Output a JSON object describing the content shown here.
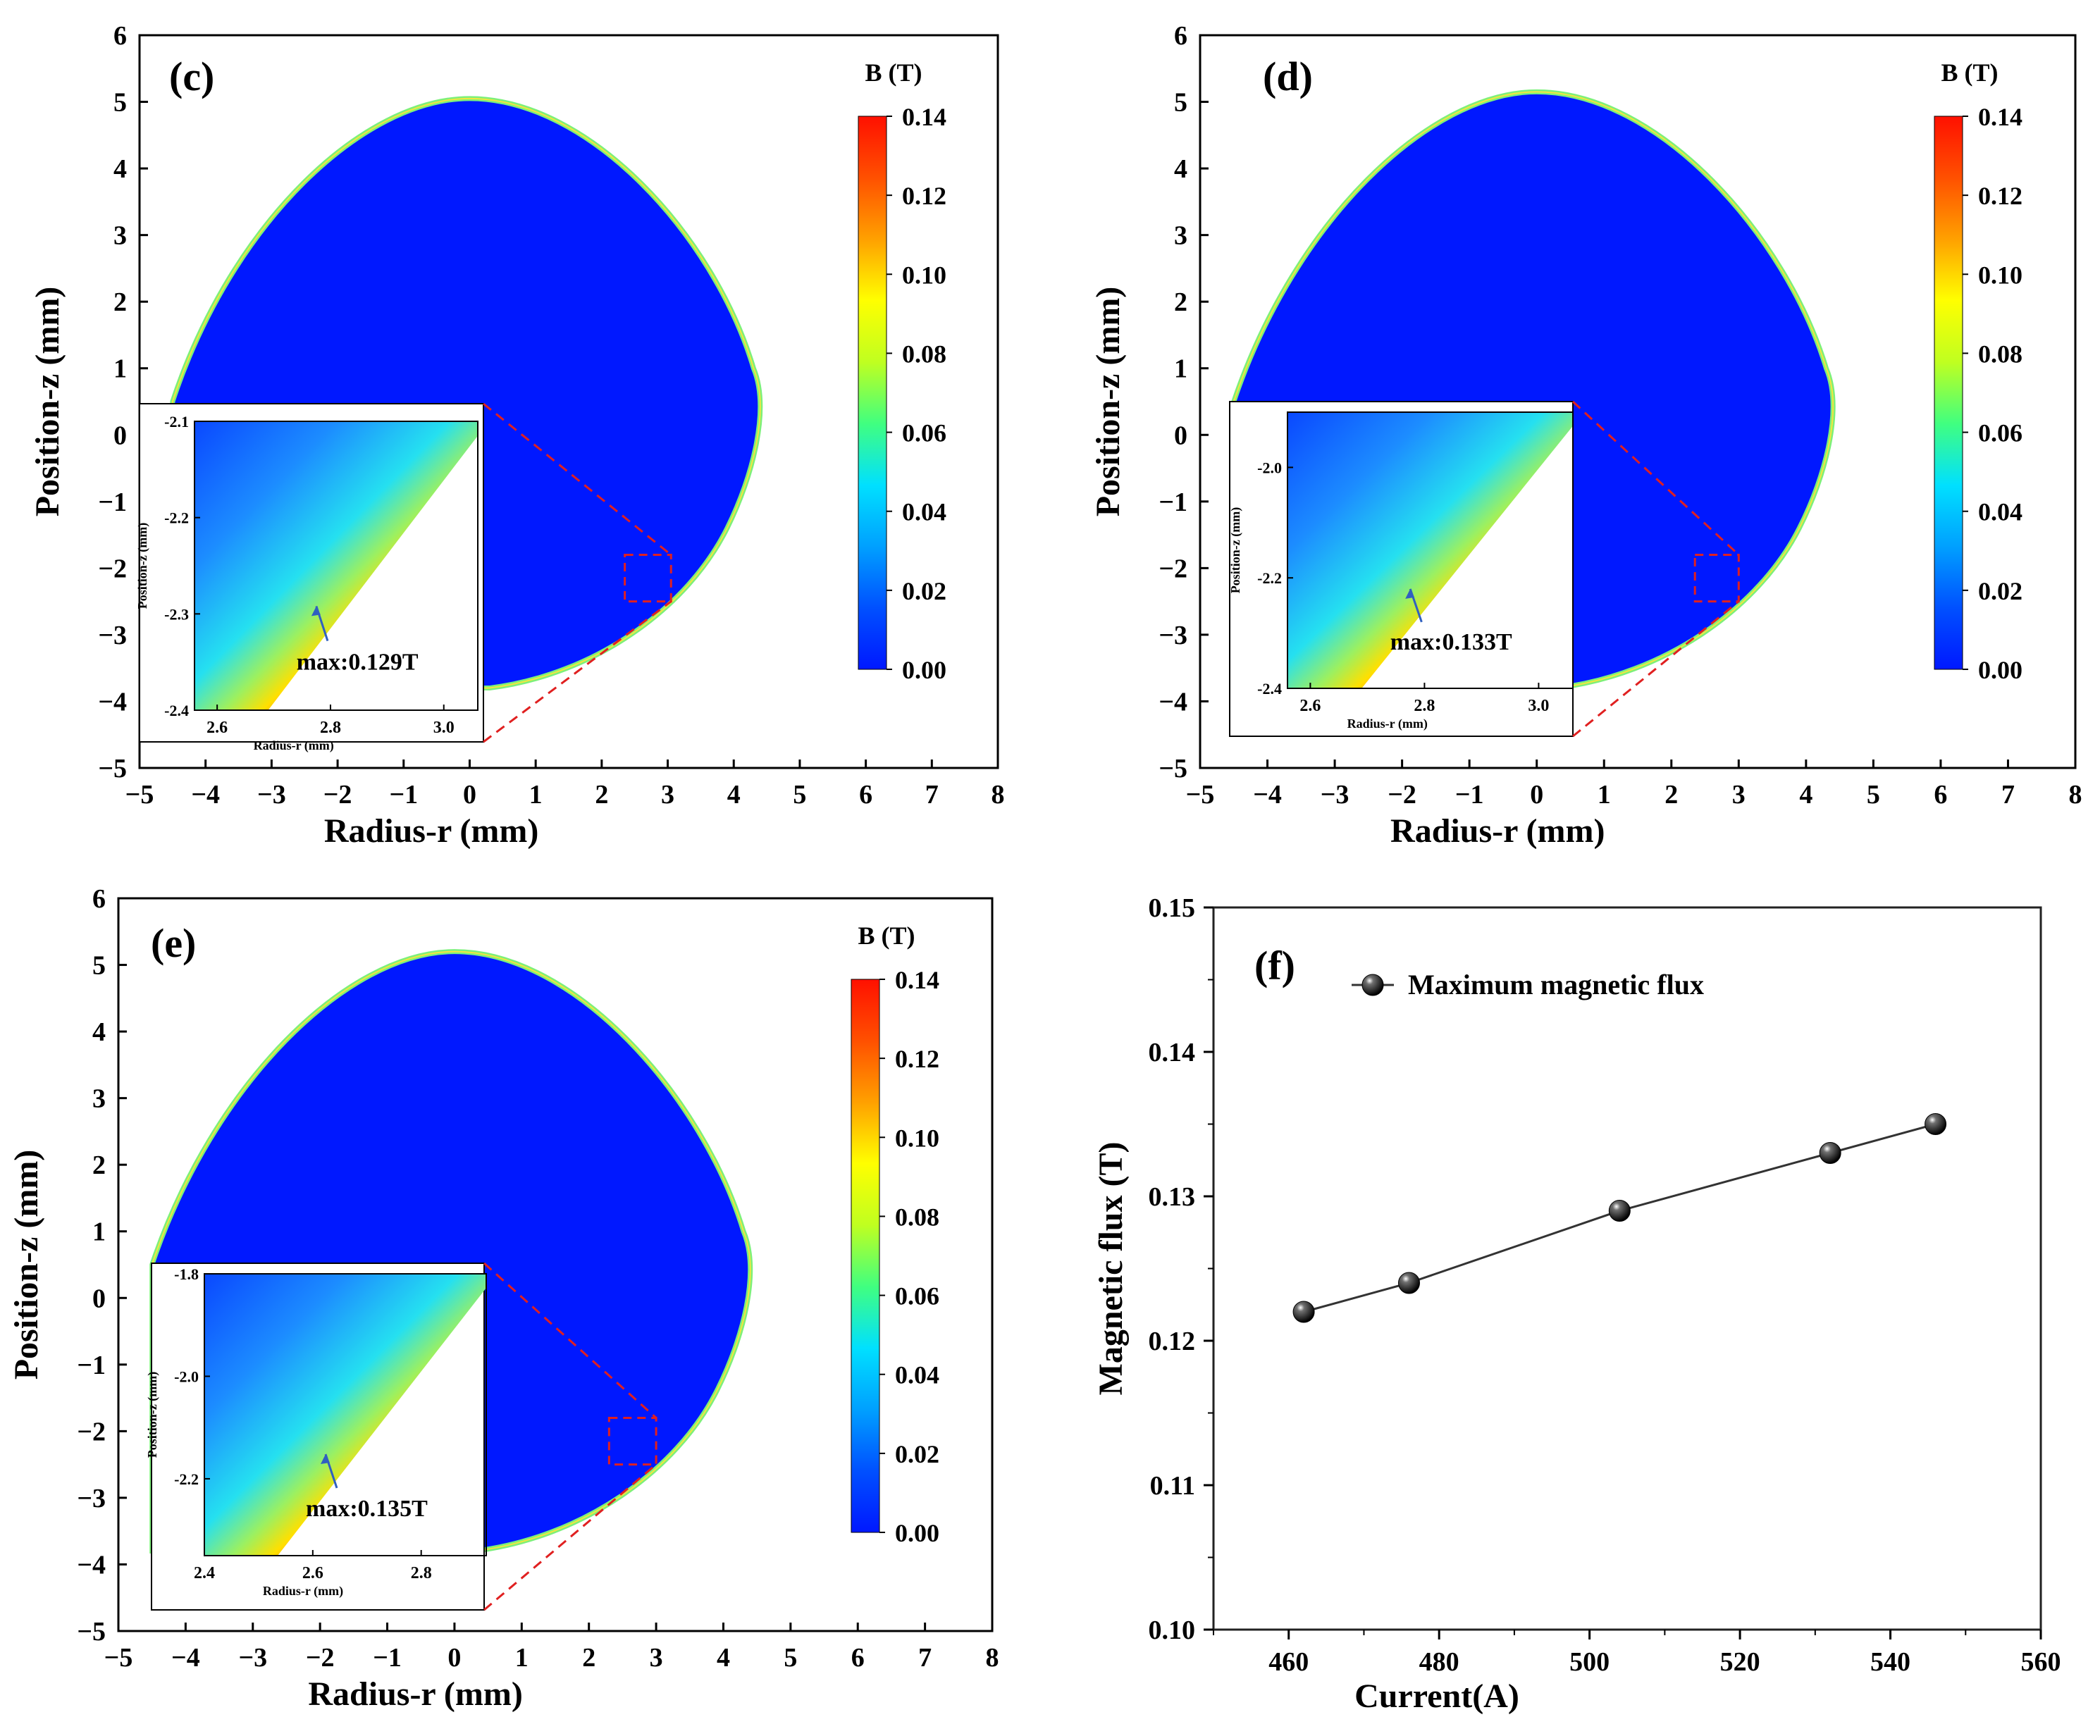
{
  "figure": {
    "colorscale": [
      "#0018ff",
      "#0050ff",
      "#00a0ff",
      "#00e0ff",
      "#40ff80",
      "#c0ff20",
      "#ffff00",
      "#ffa000",
      "#ff5000",
      "#ff1000"
    ]
  },
  "chart_data": [
    {
      "id": "c",
      "type": "heatmap",
      "panel_label": "(c)",
      "title": "",
      "xlabel": "Radius-r (mm)",
      "ylabel": "Position-z (mm)",
      "xlim": [
        -5,
        8
      ],
      "ylim": [
        -5,
        6
      ],
      "xticks": [
        "−5",
        "−4",
        "−3",
        "−2",
        "−1",
        "0",
        "1",
        "2",
        "3",
        "4",
        "5",
        "6",
        "7",
        "8"
      ],
      "yticks": [
        "−5",
        "−4",
        "−3",
        "−2",
        "−1",
        "0",
        "1",
        "2",
        "3",
        "4",
        "5",
        "6"
      ],
      "droplet_top_z": 5.05,
      "colorbar": {
        "label": "B (T)",
        "ticks": [
          "0.00",
          "0.02",
          "0.04",
          "0.06",
          "0.08",
          "0.10",
          "0.12",
          "0.14"
        ],
        "range": [
          0,
          0.14
        ]
      },
      "inset": {
        "xlim": [
          2.56,
          3.06
        ],
        "ylim": [
          -2.4,
          -2.1
        ],
        "xticks": [
          "2.6",
          "2.8",
          "3.0"
        ],
        "xtick_values": [
          2.6,
          2.8,
          3.0
        ],
        "yticks": [
          "-2.1",
          "-2.2",
          "-2.3",
          "-2.4"
        ],
        "ytick_values": [
          -2.1,
          -2.2,
          -2.3,
          -2.4
        ],
        "xlabel": "Radius-r (mm)",
        "ylabel": "Position-z (mm)",
        "annotation": "max:0.129T",
        "zoom_region": {
          "r": [
            2.35,
            3.05
          ],
          "z": [
            -2.5,
            -1.8
          ]
        }
      }
    },
    {
      "id": "d",
      "type": "heatmap",
      "panel_label": "(d)",
      "title": "",
      "xlabel": "Radius-r (mm)",
      "ylabel": "Position-z (mm)",
      "xlim": [
        -5,
        8
      ],
      "ylim": [
        -5,
        6
      ],
      "xticks": [
        "−5",
        "−4",
        "−3",
        "−2",
        "−1",
        "0",
        "1",
        "2",
        "3",
        "4",
        "5",
        "6",
        "7",
        "8"
      ],
      "yticks": [
        "−5",
        "−4",
        "−3",
        "−2",
        "−1",
        "0",
        "1",
        "2",
        "3",
        "4",
        "5",
        "6"
      ],
      "droplet_top_z": 5.15,
      "colorbar": {
        "label": "B (T)",
        "ticks": [
          "0.00",
          "0.02",
          "0.04",
          "0.06",
          "0.08",
          "0.10",
          "0.12",
          "0.14"
        ],
        "range": [
          0,
          0.14
        ]
      },
      "inset": {
        "xlim": [
          2.56,
          3.06
        ],
        "ylim": [
          -2.4,
          -1.9
        ],
        "xticks": [
          "2.6",
          "2.8",
          "3.0"
        ],
        "xtick_values": [
          2.6,
          2.8,
          3.0
        ],
        "yticks": [
          "-2.0",
          "-2.2",
          "-2.4"
        ],
        "ytick_values": [
          -2.0,
          -2.2,
          -2.4
        ],
        "xlabel": "Radius-r (mm)",
        "ylabel": "Position-z (mm)",
        "annotation": "max:0.133T",
        "zoom_region": {
          "r": [
            2.35,
            3.0
          ],
          "z": [
            -2.5,
            -1.8
          ]
        }
      }
    },
    {
      "id": "e",
      "type": "heatmap",
      "panel_label": "(e)",
      "title": "",
      "xlabel": "Radius-r (mm)",
      "ylabel": "Position-z (mm)",
      "xlim": [
        -5,
        8
      ],
      "ylim": [
        -5,
        6
      ],
      "xticks": [
        "−5",
        "−4",
        "−3",
        "−2",
        "−1",
        "0",
        "1",
        "2",
        "3",
        "4",
        "5",
        "6",
        "7",
        "8"
      ],
      "yticks": [
        "−5",
        "−4",
        "−3",
        "−2",
        "−1",
        "0",
        "1",
        "2",
        "3",
        "4",
        "5",
        "6"
      ],
      "droplet_top_z": 5.2,
      "colorbar": {
        "label": "B (T)",
        "ticks": [
          "0.00",
          "0.02",
          "0.04",
          "0.06",
          "0.08",
          "0.10",
          "0.12",
          "0.14"
        ],
        "range": [
          0,
          0.14
        ]
      },
      "inset": {
        "xlim": [
          2.4,
          2.92
        ],
        "ylim": [
          -2.35,
          -1.8
        ],
        "xticks": [
          "2.4",
          "2.6",
          "2.8"
        ],
        "xtick_values": [
          2.4,
          2.6,
          2.8
        ],
        "yticks": [
          "-1.8",
          "-2.0",
          "-2.2"
        ],
        "ytick_values": [
          -1.8,
          -2.0,
          -2.2
        ],
        "xlabel": "Radius-r (mm)",
        "ylabel": "Position-z (mm)",
        "annotation": "max:0.135T",
        "zoom_region": {
          "r": [
            2.3,
            3.0
          ],
          "z": [
            -2.5,
            -1.8
          ]
        }
      }
    },
    {
      "id": "f",
      "type": "line",
      "panel_label": "(f)",
      "title": "",
      "xlabel": "Current(A)",
      "ylabel": "Magnetic flux (T)",
      "xlim": [
        450,
        560
      ],
      "ylim": [
        0.1,
        0.15
      ],
      "xticks": [
        "460",
        "480",
        "500",
        "520",
        "540",
        "560"
      ],
      "xtick_values": [
        460,
        480,
        500,
        520,
        540,
        560
      ],
      "yticks": [
        "0.10",
        "0.11",
        "0.12",
        "0.13",
        "0.14",
        "0.15"
      ],
      "ytick_values": [
        0.1,
        0.11,
        0.12,
        0.13,
        0.14,
        0.15
      ],
      "legend": "top-left",
      "series": [
        {
          "name": "Maximum magnetic flux",
          "x": [
            462,
            476,
            504,
            532,
            546
          ],
          "values": [
            0.122,
            0.124,
            0.129,
            0.133,
            0.135
          ]
        }
      ]
    }
  ]
}
